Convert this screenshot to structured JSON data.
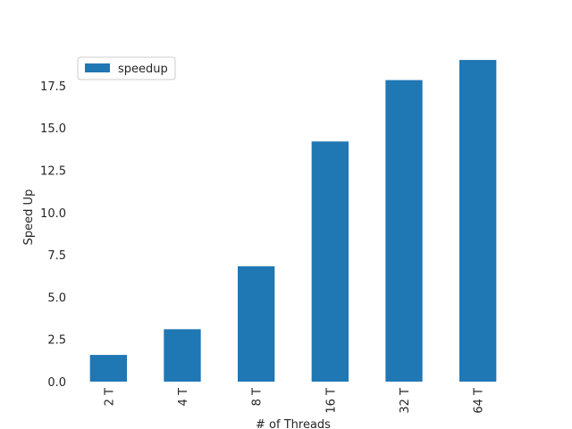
{
  "chart_data": {
    "type": "bar",
    "categories": [
      "2 T",
      "4 T",
      "8 T",
      "16 T",
      "32 T",
      "64 T"
    ],
    "series": [
      {
        "name": "speedup",
        "values": [
          1.58,
          3.1,
          6.82,
          14.2,
          17.83,
          19.02
        ]
      }
    ],
    "title": "",
    "xlabel": "# of Threads",
    "ylabel": "Speed Up",
    "ylim": [
      0,
      19.5
    ],
    "yticks": [
      "0.0",
      "2.5",
      "5.0",
      "7.5",
      "10.0",
      "12.5",
      "15.0",
      "17.5"
    ],
    "grid": false,
    "legend_position": "top-left",
    "bar_color": "#1f77b4"
  }
}
